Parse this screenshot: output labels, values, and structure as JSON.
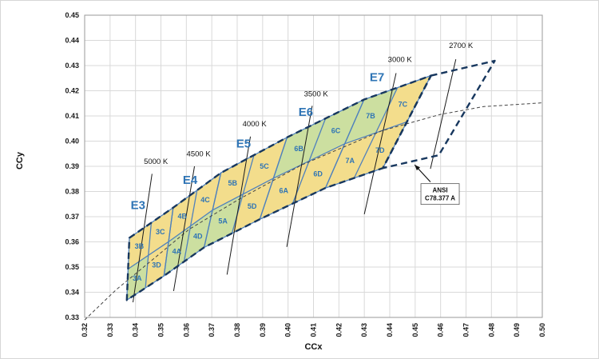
{
  "chart_data": {
    "type": "scatter",
    "title": "",
    "xlabel": "CCx",
    "ylabel": "CCy",
    "xlim": [
      0.32,
      0.5
    ],
    "ylim": [
      0.33,
      0.45
    ],
    "grid": true,
    "xticks": [
      "0.32",
      "0.33",
      "0.34",
      "0.35",
      "0.36",
      "0.37",
      "0.38",
      "0.39",
      "0.40",
      "0.41",
      "0.42",
      "0.43",
      "0.44",
      "0.45",
      "0.46",
      "0.47",
      "0.48",
      "0.49",
      "0.50"
    ],
    "yticks": [
      "0.33",
      "0.34",
      "0.35",
      "0.36",
      "0.37",
      "0.38",
      "0.39",
      "0.40",
      "0.41",
      "0.42",
      "0.43",
      "0.44",
      "0.45"
    ],
    "palette": {
      "yellow": "#F3DD8C",
      "green": "#CCDFA0",
      "bin_line_blue": "#4F81BD",
      "envelope_navy": "#17375E",
      "label_blue": "#2E74B5",
      "cct_line_black": "#1a1a1a",
      "locus_gray": "#444444",
      "grid_gray": "#D9D9D9"
    },
    "planckian_locus": [
      [
        0.32,
        0.329
      ],
      [
        0.3324,
        0.341
      ],
      [
        0.3451,
        0.3516
      ],
      [
        0.3611,
        0.365
      ],
      [
        0.3805,
        0.3768
      ],
      [
        0.4053,
        0.3905
      ],
      [
        0.4369,
        0.4041
      ],
      [
        0.4599,
        0.4106
      ],
      [
        0.477,
        0.4137
      ],
      [
        0.5,
        0.4152
      ]
    ],
    "bins": [
      {
        "name": "E3",
        "nominal_cct": "5000 K",
        "label_pos": [
          0.341,
          0.373
        ],
        "corners": {
          "TL": [
            0.3376,
            0.3616
          ],
          "TR": [
            0.3548,
            0.3736
          ],
          "BR": [
            0.3512,
            0.3465
          ],
          "BL": [
            0.3366,
            0.3369
          ]
        },
        "sub_bins": [
          {
            "name": "3A",
            "quadrant": "A",
            "color": "green"
          },
          {
            "name": "3B",
            "quadrant": "B",
            "color": "yellow"
          },
          {
            "name": "3C",
            "quadrant": "C",
            "color": "yellow"
          },
          {
            "name": "3D",
            "quadrant": "D",
            "color": "yellow"
          }
        ]
      },
      {
        "name": "E4",
        "nominal_cct": "4500 K",
        "label_pos": [
          0.3615,
          0.383
        ],
        "corners": {
          "TL": [
            0.3548,
            0.3736
          ],
          "TR": [
            0.3736,
            0.3874
          ],
          "BR": [
            0.367,
            0.3578
          ],
          "BL": [
            0.3512,
            0.3465
          ]
        },
        "sub_bins": [
          {
            "name": "4A",
            "quadrant": "A",
            "color": "green"
          },
          {
            "name": "4B",
            "quadrant": "B",
            "color": "yellow"
          },
          {
            "name": "4C",
            "quadrant": "C",
            "color": "yellow"
          },
          {
            "name": "4D",
            "quadrant": "D",
            "color": "green"
          }
        ]
      },
      {
        "name": "E5",
        "nominal_cct": "4000 K",
        "label_pos": [
          0.3825,
          0.3975
        ],
        "corners": {
          "TL": [
            0.3736,
            0.3874
          ],
          "TR": [
            0.3996,
            0.4015
          ],
          "BR": [
            0.3889,
            0.369
          ],
          "BL": [
            0.367,
            0.3578
          ]
        },
        "sub_bins": [
          {
            "name": "5A",
            "quadrant": "A",
            "color": "green"
          },
          {
            "name": "5B",
            "quadrant": "B",
            "color": "yellow"
          },
          {
            "name": "5C",
            "quadrant": "C",
            "color": "yellow"
          },
          {
            "name": "5D",
            "quadrant": "D",
            "color": "yellow"
          }
        ]
      },
      {
        "name": "E6",
        "nominal_cct": "3500 K",
        "label_pos": [
          0.407,
          0.41
        ],
        "corners": {
          "TL": [
            0.3996,
            0.4015
          ],
          "TR": [
            0.4299,
            0.4165
          ],
          "BR": [
            0.4147,
            0.3814
          ],
          "BL": [
            0.3889,
            0.369
          ]
        },
        "sub_bins": [
          {
            "name": "6A",
            "quadrant": "A",
            "color": "yellow"
          },
          {
            "name": "6B",
            "quadrant": "B",
            "color": "green"
          },
          {
            "name": "6C",
            "quadrant": "C",
            "color": "green"
          },
          {
            "name": "6D",
            "quadrant": "D",
            "color": "yellow"
          }
        ]
      },
      {
        "name": "E7",
        "nominal_cct": "3000 K",
        "label_pos": [
          0.435,
          0.4238
        ],
        "corners": {
          "TL": [
            0.4299,
            0.4165
          ],
          "TR": [
            0.4562,
            0.426
          ],
          "BR": [
            0.4373,
            0.3893
          ],
          "BL": [
            0.4147,
            0.3814
          ]
        },
        "sub_bins": [
          {
            "name": "7A",
            "quadrant": "A",
            "color": "yellow"
          },
          {
            "name": "7B",
            "quadrant": "B",
            "color": "green"
          },
          {
            "name": "7C",
            "quadrant": "C",
            "color": "yellow"
          },
          {
            "name": "7D",
            "quadrant": "D",
            "color": "yellow"
          }
        ]
      }
    ],
    "ansi_quadrangle": {
      "nominal_cct": "2700 K",
      "corners": {
        "TL": [
          0.4562,
          0.426
        ],
        "TR": [
          0.4813,
          0.4319
        ],
        "BR": [
          0.4593,
          0.3944
        ],
        "BL": [
          0.4373,
          0.3893
        ]
      }
    },
    "cct_lines": [
      {
        "label": "5000 K",
        "x1": 0.3465,
        "y1": 0.387,
        "x2": 0.339,
        "y2": 0.336,
        "label_pos": [
          0.348,
          0.391
        ]
      },
      {
        "label": "4500 K",
        "x1": 0.3632,
        "y1": 0.39,
        "x2": 0.355,
        "y2": 0.3405,
        "label_pos": [
          0.3648,
          0.394
        ]
      },
      {
        "label": "4000 K",
        "x1": 0.3852,
        "y1": 0.4018,
        "x2": 0.376,
        "y2": 0.347,
        "label_pos": [
          0.3868,
          0.4058
        ]
      },
      {
        "label": "3500 K",
        "x1": 0.4095,
        "y1": 0.414,
        "x2": 0.3995,
        "y2": 0.358,
        "label_pos": [
          0.411,
          0.4178
        ]
      },
      {
        "label": "3000 K",
        "x1": 0.4425,
        "y1": 0.427,
        "x2": 0.43,
        "y2": 0.371,
        "label_pos": [
          0.444,
          0.4315
        ]
      },
      {
        "label": "2700 K",
        "x1": 0.466,
        "y1": 0.4325,
        "x2": 0.456,
        "y2": 0.389,
        "label_pos": [
          0.468,
          0.437
        ]
      }
    ],
    "annotation": {
      "lines": [
        "ANSI",
        "C78.377 A"
      ],
      "box_center": [
        0.4598,
        0.379
      ],
      "arrow_from": [
        0.456,
        0.3838
      ],
      "arrow_to": [
        0.4498,
        0.3906
      ]
    }
  }
}
